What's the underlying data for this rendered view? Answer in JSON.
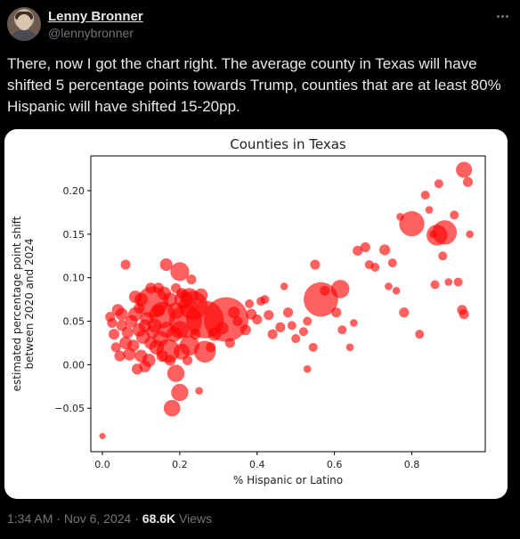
{
  "user": {
    "display_name": "Lenny Bronner",
    "handle": "@lennybronner",
    "avatar_icon": "user-avatar-photo"
  },
  "tweet": {
    "text": "There, now I got the chart right. The average county in Texas will have shifted 5 percentage points towards Trump, counties that are at least 80% Hispanic will have shifted 15-20pp."
  },
  "meta": {
    "time": "1:34 AM",
    "sep1": "·",
    "date": "Nov 6, 2024",
    "sep2": "·",
    "views_count": "68.6K",
    "views_label": "Views"
  },
  "chart_data": {
    "type": "scatter",
    "title": "Counties in Texas",
    "xlabel": "% Hispanic or Latino",
    "ylabel_lines": [
      "estimated percentage point shift",
      "between 2020 and 2024"
    ],
    "xlim": [
      -0.03,
      0.99
    ],
    "ylim": [
      -0.1,
      0.24
    ],
    "xticks": [
      0.0,
      0.2,
      0.4,
      0.6,
      0.8
    ],
    "xtick_labels": [
      "0.0",
      "0.2",
      "0.4",
      "0.6",
      "0.8"
    ],
    "yticks": [
      -0.05,
      0.0,
      0.05,
      0.1,
      0.15,
      0.2
    ],
    "ytick_labels": [
      "−0.05",
      "0.00",
      "0.05",
      "0.10",
      "0.15",
      "0.20"
    ],
    "grid": false,
    "point_color": "#ff0000",
    "note": "marker size proportional to county population",
    "points": [
      {
        "x": 0.32,
        "y": 0.052,
        "s": 1.0
      },
      {
        "x": 0.265,
        "y": 0.052,
        "s": 0.72
      },
      {
        "x": 0.215,
        "y": 0.05,
        "s": 0.55
      },
      {
        "x": 0.13,
        "y": 0.072,
        "s": 0.5
      },
      {
        "x": 0.565,
        "y": 0.075,
        "s": 0.6
      },
      {
        "x": 0.235,
        "y": 0.068,
        "s": 0.42
      },
      {
        "x": 0.155,
        "y": 0.057,
        "s": 0.35
      },
      {
        "x": 0.8,
        "y": 0.162,
        "s": 0.32
      },
      {
        "x": 0.885,
        "y": 0.152,
        "s": 0.3
      },
      {
        "x": 0.865,
        "y": 0.149,
        "s": 0.22
      },
      {
        "x": 0.17,
        "y": 0.016,
        "s": 0.28
      },
      {
        "x": 0.265,
        "y": 0.015,
        "s": 0.24
      },
      {
        "x": 0.225,
        "y": 0.022,
        "s": 0.2
      },
      {
        "x": 0.2,
        "y": 0.107,
        "s": 0.18
      },
      {
        "x": 0.615,
        "y": 0.087,
        "s": 0.17
      },
      {
        "x": 0.19,
        "y": -0.01,
        "s": 0.15
      },
      {
        "x": 0.2,
        "y": -0.032,
        "s": 0.15
      },
      {
        "x": 0.18,
        "y": -0.05,
        "s": 0.14
      },
      {
        "x": 0.935,
        "y": 0.224,
        "s": 0.13
      },
      {
        "x": 0.21,
        "y": 0.075,
        "s": 0.17
      },
      {
        "x": 0.225,
        "y": 0.078,
        "s": 0.16
      },
      {
        "x": 0.19,
        "y": 0.062,
        "s": 0.14
      },
      {
        "x": 0.2,
        "y": 0.04,
        "s": 0.16
      },
      {
        "x": 0.205,
        "y": 0.015,
        "s": 0.13
      },
      {
        "x": 0.165,
        "y": 0.04,
        "s": 0.13
      },
      {
        "x": 0.15,
        "y": 0.03,
        "s": 0.12
      },
      {
        "x": 0.14,
        "y": 0.02,
        "s": 0.11
      },
      {
        "x": 0.185,
        "y": 0.035,
        "s": 0.12
      },
      {
        "x": 0.105,
        "y": 0.032,
        "s": 0.1
      },
      {
        "x": 0.085,
        "y": 0.058,
        "s": 0.1
      },
      {
        "x": 0.095,
        "y": 0.04,
        "s": 0.09
      },
      {
        "x": 0.075,
        "y": 0.05,
        "s": 0.08
      },
      {
        "x": 0.06,
        "y": 0.025,
        "s": 0.08
      },
      {
        "x": 0.07,
        "y": 0.012,
        "s": 0.08
      },
      {
        "x": 0.1,
        "y": 0.01,
        "s": 0.08
      },
      {
        "x": 0.12,
        "y": 0.005,
        "s": 0.09
      },
      {
        "x": 0.135,
        "y": 0.045,
        "s": 0.1
      },
      {
        "x": 0.115,
        "y": 0.053,
        "s": 0.09
      },
      {
        "x": 0.1,
        "y": 0.075,
        "s": 0.09
      },
      {
        "x": 0.085,
        "y": 0.078,
        "s": 0.08
      },
      {
        "x": 0.05,
        "y": 0.058,
        "s": 0.08
      },
      {
        "x": 0.04,
        "y": 0.063,
        "s": 0.07
      },
      {
        "x": 0.03,
        "y": 0.035,
        "s": 0.06
      },
      {
        "x": 0.045,
        "y": 0.01,
        "s": 0.06
      },
      {
        "x": 0.065,
        "y": 0.037,
        "s": 0.07
      },
      {
        "x": 0.08,
        "y": 0.022,
        "s": 0.07
      },
      {
        "x": 0.09,
        "y": -0.005,
        "s": 0.06
      },
      {
        "x": 0.11,
        "y": -0.002,
        "s": 0.07
      },
      {
        "x": 0.125,
        "y": 0.025,
        "s": 0.08
      },
      {
        "x": 0.16,
        "y": 0.082,
        "s": 0.09
      },
      {
        "x": 0.175,
        "y": 0.075,
        "s": 0.1
      },
      {
        "x": 0.255,
        "y": 0.08,
        "s": 0.09
      },
      {
        "x": 0.165,
        "y": 0.115,
        "s": 0.08
      },
      {
        "x": 0.06,
        "y": 0.115,
        "s": 0.05
      },
      {
        "x": 0.23,
        "y": 0.098,
        "s": 0.05
      },
      {
        "x": 0.29,
        "y": 0.035,
        "s": 0.09
      },
      {
        "x": 0.31,
        "y": 0.042,
        "s": 0.08
      },
      {
        "x": 0.34,
        "y": 0.06,
        "s": 0.07
      },
      {
        "x": 0.37,
        "y": 0.04,
        "s": 0.06
      },
      {
        "x": 0.385,
        "y": 0.058,
        "s": 0.06
      },
      {
        "x": 0.4,
        "y": 0.052,
        "s": 0.05
      },
      {
        "x": 0.43,
        "y": 0.057,
        "s": 0.05
      },
      {
        "x": 0.44,
        "y": 0.035,
        "s": 0.05
      },
      {
        "x": 0.46,
        "y": 0.043,
        "s": 0.05
      },
      {
        "x": 0.48,
        "y": 0.06,
        "s": 0.05
      },
      {
        "x": 0.49,
        "y": 0.045,
        "s": 0.04
      },
      {
        "x": 0.5,
        "y": 0.03,
        "s": 0.04
      },
      {
        "x": 0.52,
        "y": 0.038,
        "s": 0.04
      },
      {
        "x": 0.53,
        "y": 0.05,
        "s": 0.04
      },
      {
        "x": 0.545,
        "y": 0.02,
        "s": 0.04
      },
      {
        "x": 0.41,
        "y": 0.073,
        "s": 0.04
      },
      {
        "x": 0.38,
        "y": 0.07,
        "s": 0.04
      },
      {
        "x": 0.42,
        "y": 0.075,
        "s": 0.04
      },
      {
        "x": 0.47,
        "y": 0.09,
        "s": 0.03
      },
      {
        "x": 0.55,
        "y": 0.115,
        "s": 0.05
      },
      {
        "x": 0.575,
        "y": 0.085,
        "s": 0.05
      },
      {
        "x": 0.605,
        "y": 0.06,
        "s": 0.05
      },
      {
        "x": 0.62,
        "y": 0.04,
        "s": 0.04
      },
      {
        "x": 0.66,
        "y": 0.131,
        "s": 0.05
      },
      {
        "x": 0.68,
        "y": 0.135,
        "s": 0.05
      },
      {
        "x": 0.69,
        "y": 0.115,
        "s": 0.04
      },
      {
        "x": 0.705,
        "y": 0.112,
        "s": 0.04
      },
      {
        "x": 0.73,
        "y": 0.132,
        "s": 0.06
      },
      {
        "x": 0.75,
        "y": 0.117,
        "s": 0.04
      },
      {
        "x": 0.78,
        "y": 0.06,
        "s": 0.05
      },
      {
        "x": 0.82,
        "y": 0.035,
        "s": 0.04
      },
      {
        "x": 0.835,
        "y": 0.195,
        "s": 0.04
      },
      {
        "x": 0.845,
        "y": 0.178,
        "s": 0.03
      },
      {
        "x": 0.855,
        "y": 0.15,
        "s": 0.03
      },
      {
        "x": 0.86,
        "y": 0.092,
        "s": 0.04
      },
      {
        "x": 0.87,
        "y": 0.208,
        "s": 0.04
      },
      {
        "x": 0.88,
        "y": 0.125,
        "s": 0.04
      },
      {
        "x": 0.895,
        "y": 0.095,
        "s": 0.03
      },
      {
        "x": 0.91,
        "y": 0.172,
        "s": 0.04
      },
      {
        "x": 0.92,
        "y": 0.095,
        "s": 0.04
      },
      {
        "x": 0.93,
        "y": 0.063,
        "s": 0.05
      },
      {
        "x": 0.935,
        "y": 0.058,
        "s": 0.05
      },
      {
        "x": 0.945,
        "y": 0.21,
        "s": 0.05
      },
      {
        "x": 0.95,
        "y": 0.15,
        "s": 0.03
      },
      {
        "x": 0.74,
        "y": 0.09,
        "s": 0.03
      },
      {
        "x": 0.76,
        "y": 0.085,
        "s": 0.03
      },
      {
        "x": 0.77,
        "y": 0.17,
        "s": 0.03
      },
      {
        "x": 0.64,
        "y": 0.02,
        "s": 0.03
      },
      {
        "x": 0.65,
        "y": 0.048,
        "s": 0.03
      },
      {
        "x": 0.53,
        "y": -0.005,
        "s": 0.03
      },
      {
        "x": 0.25,
        "y": -0.03,
        "s": 0.03
      },
      {
        "x": 0.0,
        "y": -0.082,
        "s": 0.02
      },
      {
        "x": 0.22,
        "y": 0.005,
        "s": 0.05
      },
      {
        "x": 0.24,
        "y": 0.035,
        "s": 0.06
      },
      {
        "x": 0.28,
        "y": 0.02,
        "s": 0.05
      },
      {
        "x": 0.33,
        "y": 0.025,
        "s": 0.05
      },
      {
        "x": 0.35,
        "y": 0.05,
        "s": 0.05
      },
      {
        "x": 0.145,
        "y": 0.062,
        "s": 0.08
      },
      {
        "x": 0.13,
        "y": 0.038,
        "s": 0.09
      },
      {
        "x": 0.11,
        "y": 0.045,
        "s": 0.08
      },
      {
        "x": 0.155,
        "y": 0.01,
        "s": 0.07
      },
      {
        "x": 0.175,
        "y": 0.005,
        "s": 0.06
      },
      {
        "x": 0.05,
        "y": 0.045,
        "s": 0.06
      },
      {
        "x": 0.02,
        "y": 0.055,
        "s": 0.05
      },
      {
        "x": 0.025,
        "y": 0.048,
        "s": 0.05
      },
      {
        "x": 0.035,
        "y": 0.02,
        "s": 0.05
      },
      {
        "x": 0.095,
        "y": 0.065,
        "s": 0.06
      },
      {
        "x": 0.125,
        "y": 0.088,
        "s": 0.06
      },
      {
        "x": 0.145,
        "y": 0.088,
        "s": 0.06
      },
      {
        "x": 0.19,
        "y": 0.088,
        "s": 0.05
      },
      {
        "x": 0.205,
        "y": 0.082,
        "s": 0.06
      }
    ]
  }
}
